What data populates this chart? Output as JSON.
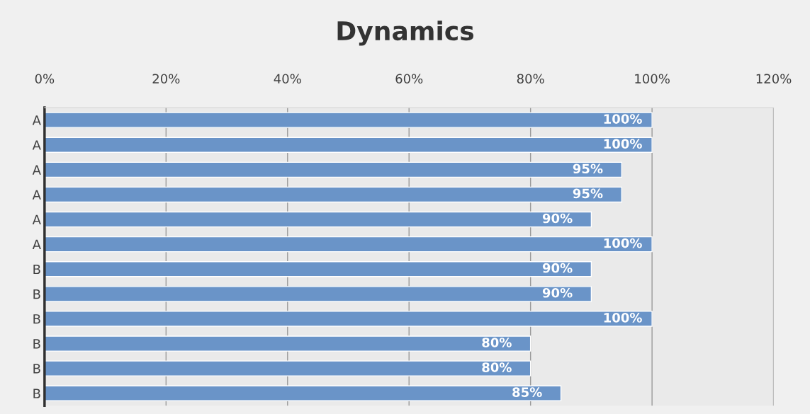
{
  "chart_data": {
    "type": "bar",
    "title": "Dynamics",
    "orientation": "horizontal",
    "categories": [
      "A",
      "A",
      "A",
      "A",
      "A",
      "A",
      "B",
      "B",
      "B",
      "B",
      "B",
      "B"
    ],
    "values": [
      100,
      100,
      95,
      95,
      90,
      100,
      90,
      90,
      100,
      80,
      80,
      85
    ],
    "value_labels": [
      "100%",
      "100%",
      "95%",
      "95%",
      "90%",
      "100%",
      "90%",
      "90%",
      "100%",
      "80%",
      "80%",
      "85%"
    ],
    "color": "#6a94c8",
    "xlim": [
      0,
      120
    ],
    "xticks": [
      {
        "value": 0,
        "label": "0%"
      },
      {
        "value": 20,
        "label": "20%"
      },
      {
        "value": 40,
        "label": "40%"
      },
      {
        "value": 60,
        "label": "60%"
      },
      {
        "value": 80,
        "label": "80%"
      },
      {
        "value": 100,
        "label": "100%"
      },
      {
        "value": 120,
        "label": "120%"
      }
    ],
    "grid": "x",
    "legend": false
  }
}
